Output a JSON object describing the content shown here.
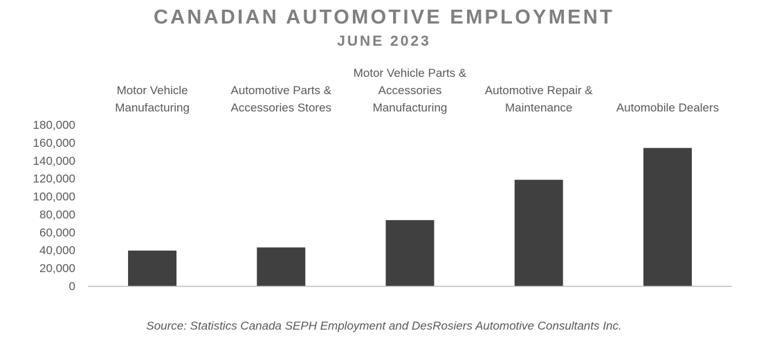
{
  "title": "CANADIAN AUTOMOTIVE EMPLOYMENT",
  "subtitle": "JUNE 2023",
  "source": "Source: Statistics Canada SEPH Employment and DesRosiers Automotive Consultants Inc.",
  "colors": {
    "bar": "#404040",
    "title": "#7f7f7f",
    "text": "#595959",
    "axis": "#bfbfbf"
  },
  "chart_data": {
    "type": "bar",
    "title": "CANADIAN AUTOMOTIVE EMPLOYMENT",
    "subtitle": "JUNE 2023",
    "xlabel": "",
    "ylabel": "",
    "categories": [
      [
        "Motor Vehicle",
        "Manufacturing"
      ],
      [
        "Automotive Parts &",
        "Accessories Stores"
      ],
      [
        "Motor Vehicle Parts &",
        "Accessories",
        "Manufacturing"
      ],
      [
        "Automotive Repair &",
        "Maintenance"
      ],
      [
        "Automobile Dealers"
      ]
    ],
    "values": [
      39500,
      43000,
      73500,
      118500,
      154000
    ],
    "ylim": [
      0,
      180000
    ],
    "yticks": [
      0,
      20000,
      40000,
      60000,
      80000,
      100000,
      120000,
      140000,
      160000,
      180000
    ],
    "ytick_labels": [
      "0",
      "20,000",
      "40,000",
      "60,000",
      "80,000",
      "100,000",
      "120,000",
      "140,000",
      "160,000",
      "180,000"
    ],
    "grid": false,
    "legend": "none",
    "category_labels_position": "top"
  }
}
